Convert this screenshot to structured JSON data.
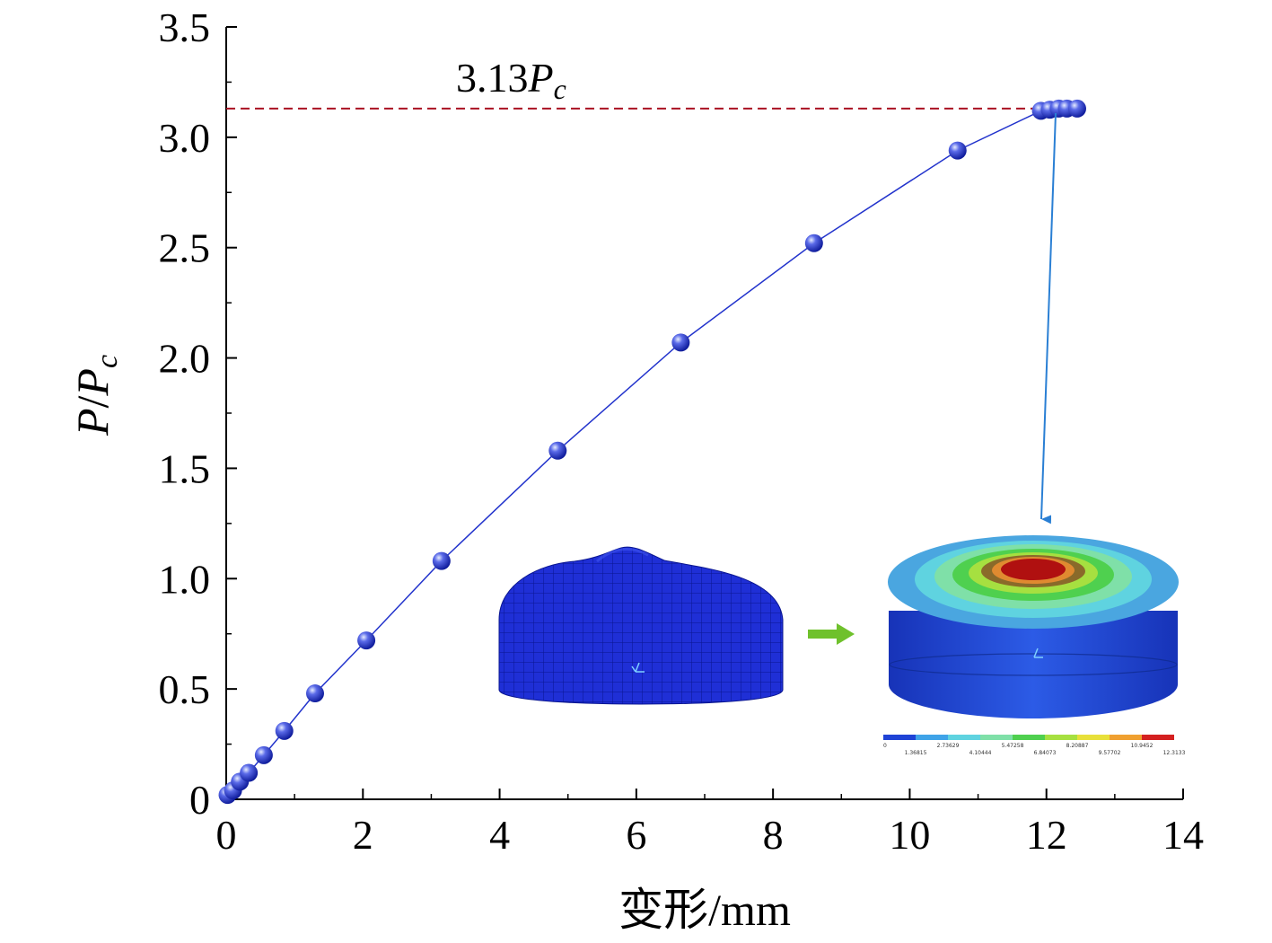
{
  "chart_data": {
    "type": "line",
    "title": "",
    "xlabel": "变形/mm",
    "ylabel_main": "P",
    "ylabel_sep": "/",
    "ylabel_denom": "P",
    "ylabel_sub": "c",
    "xlim": [
      0,
      14
    ],
    "ylim": [
      0,
      3.5
    ],
    "x_ticks": [
      "0",
      "2",
      "4",
      "6",
      "8",
      "10",
      "12",
      "14"
    ],
    "y_ticks": [
      "0",
      "0.5",
      "1.0",
      "1.5",
      "2.0",
      "2.5",
      "3.0",
      "3.5"
    ],
    "grid": false,
    "legend": "none",
    "series": [
      {
        "color": "#2233cc",
        "x": [
          0.02,
          0.1,
          0.2,
          0.33,
          0.55,
          0.85,
          1.3,
          2.05,
          3.15,
          4.85,
          6.65,
          8.6,
          10.7,
          11.92,
          12.05,
          12.18,
          12.3,
          12.45
        ],
        "y": [
          0.02,
          0.04,
          0.08,
          0.12,
          0.2,
          0.31,
          0.48,
          0.72,
          1.08,
          1.58,
          2.07,
          2.52,
          2.94,
          3.12,
          3.125,
          3.13,
          3.13,
          3.13
        ]
      }
    ],
    "reference_line": {
      "y": 3.13,
      "color": "#aa1122",
      "label_prefix": "3.13",
      "label_italic": "P",
      "label_sub": "c"
    },
    "pointer_arrow_color": "#2a7fd4",
    "inset_arrow_color": "#6fc12c",
    "contour_legend": {
      "colors": [
        "#1f43d6",
        "#3fa3e8",
        "#5fd3e0",
        "#7fe0a8",
        "#4fd04f",
        "#a6e040",
        "#e8e03a",
        "#f0a030",
        "#d42020"
      ],
      "labels_top": [
        "0",
        "2.73629",
        "5.47258",
        "8.20887",
        "10.9452"
      ],
      "labels_bottom": [
        "1.36815",
        "4.10444",
        "6.84073",
        "9.57702",
        "12.3133"
      ]
    }
  }
}
